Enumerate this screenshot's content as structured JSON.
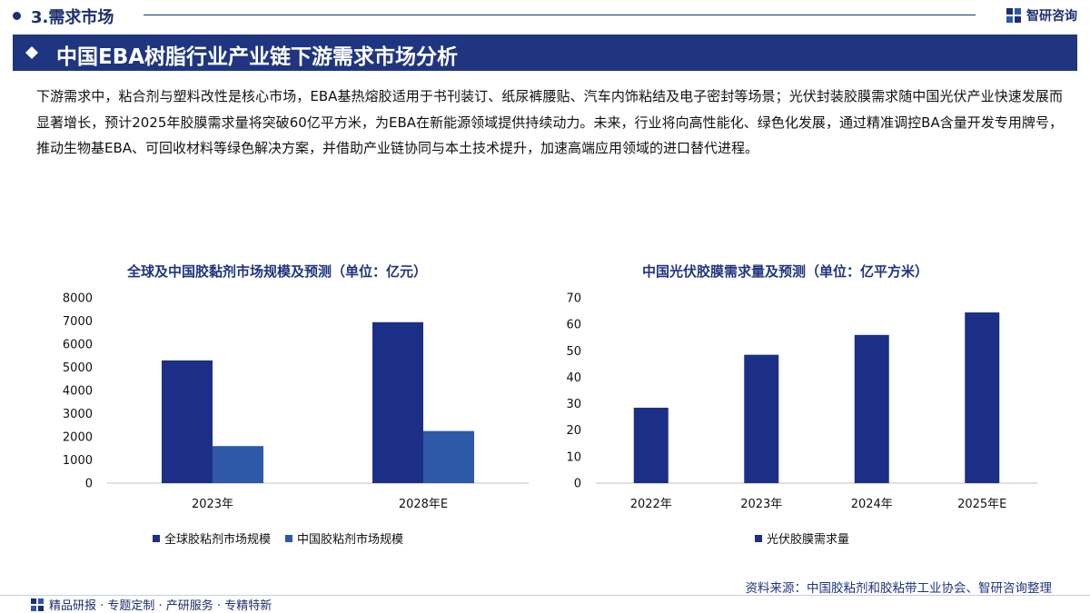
{
  "section": {
    "title": "3.需求市场"
  },
  "brand": {
    "name": "智研咨询"
  },
  "banner": {
    "title": "中国EBA树脂行业产业链下游需求市场分析"
  },
  "paragraph": "下游需求中，粘合剂与塑料改性是核心市场，EBA基热熔胶适用于书刊装订、纸尿裤腰贴、汽车内饰粘结及电子密封等场景；光伏封装胶膜需求随中国光伏产业快速发展而显著增长，预计2025年胶膜需求量将突破60亿平方米，为EBA在新能源领域提供持续动力。未来，行业将向高性能化、绿色化发展，通过精准调控BA含量开发专用牌号，推动生物基EBA、可回收材料等绿色解决方案，并借助产业链协同与本土技术提升，加速高端应用领域的进口替代进程。",
  "colors": {
    "navy": "#1f3580",
    "dark_series": "#1c2f87",
    "light_series": "#2e58a8"
  },
  "chart_data": [
    {
      "type": "bar",
      "title": "全球及中国胶黏剂市场规模及预测（单位：亿元）",
      "categories": [
        "2023年",
        "2028年E"
      ],
      "series": [
        {
          "name": "全球胶粘剂市场规模",
          "values": [
            5300,
            6950
          ],
          "color": "#1c2f87"
        },
        {
          "name": "中国胶粘剂市场规模",
          "values": [
            1600,
            2250
          ],
          "color": "#2e58a8"
        }
      ],
      "ylim": [
        0,
        8000
      ],
      "yticks": [
        0,
        1000,
        2000,
        3000,
        4000,
        5000,
        6000,
        7000,
        8000
      ],
      "legend": "bottom",
      "grid": false
    },
    {
      "type": "bar",
      "title": "中国光伏胶膜需求量及预测（单位：亿平方米）",
      "categories": [
        "2022年",
        "2023年",
        "2024年",
        "2025年E"
      ],
      "series": [
        {
          "name": "光伏胶膜需求量",
          "values": [
            28.5,
            48.5,
            56,
            64.5
          ],
          "color": "#1c2f87"
        }
      ],
      "ylim": [
        0,
        70
      ],
      "yticks": [
        0,
        10,
        20,
        30,
        40,
        50,
        60,
        70
      ],
      "legend": "bottom",
      "grid": false
    }
  ],
  "source": "资料来源：中国胶粘剂和胶粘带工业协会、智研咨询整理",
  "footer": {
    "text": "精品研报 · 专题定制 · 产研服务 · 专精特新"
  }
}
